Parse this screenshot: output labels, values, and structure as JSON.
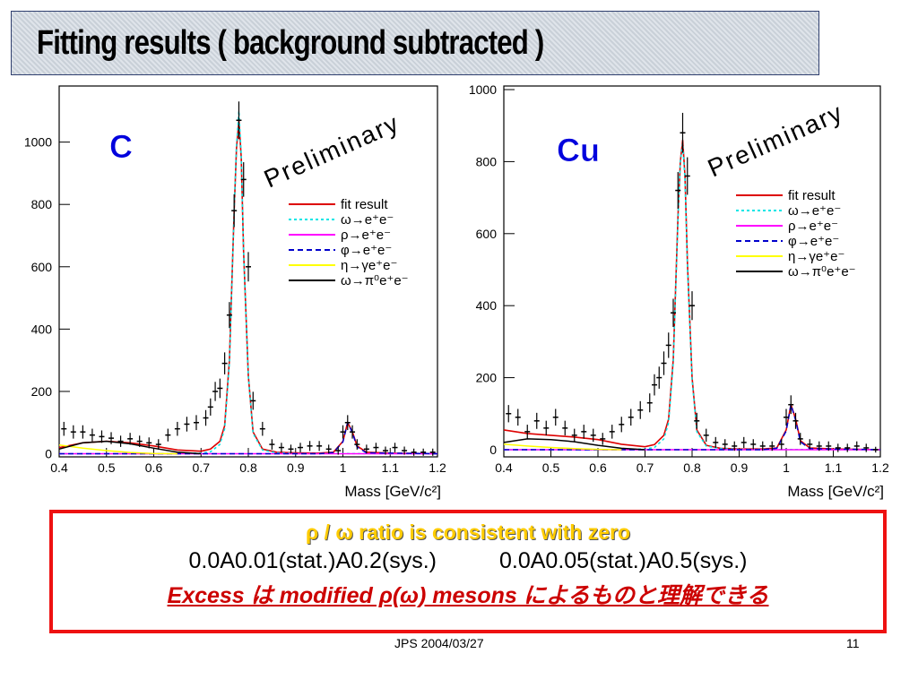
{
  "slide": {
    "title": "Fitting results ( background subtracted )",
    "summary_line1": "ρ / ω ratio is consistent with zero",
    "summary_line2_left": "0.0A0.01(stat.)A0.2(sys.)",
    "summary_line2_right": "0.0A0.05(stat.)A0.5(sys.)",
    "summary_line3": "Excess は modified ρ(ω) mesons によるものと理解できる",
    "footer_date": "JPS 2004/03/27",
    "page_number": "11"
  },
  "colors": {
    "fit": "#dd0000",
    "omega": "#00e5e5",
    "rho": "#ff00ff",
    "phi": "#0000cc",
    "eta": "#ffff00",
    "omega_dalitz": "#000000",
    "label": "#0000dd",
    "frame": "#2f3f6f",
    "summary_border": "#ee1111"
  },
  "chart_data": [
    {
      "type": "line",
      "label": "C",
      "watermark": "Preliminary",
      "xlabel": "Mass [GeV/c²]",
      "ylabel": "",
      "xlim": [
        0.4,
        1.2
      ],
      "ylim": [
        -10,
        1180
      ],
      "xticks": [
        0.4,
        0.5,
        0.6,
        0.7,
        0.8,
        0.9,
        1,
        1.1,
        1.2
      ],
      "xtick_labels": [
        "0.4",
        "0.5",
        "0.6",
        "0.7",
        "0.8",
        "0.9",
        "1",
        "1.1",
        "1.2"
      ],
      "yticks": [
        0,
        200,
        400,
        600,
        800,
        1000
      ],
      "ytick_labels": [
        "0",
        "200",
        "400",
        "600",
        "800",
        "1000"
      ],
      "legend_position": "right",
      "grid": false,
      "series": [
        {
          "name": "fit result",
          "key": "fit",
          "style": "solid",
          "x": [
            0.4,
            0.45,
            0.5,
            0.55,
            0.6,
            0.65,
            0.7,
            0.72,
            0.74,
            0.75,
            0.76,
            0.77,
            0.775,
            0.78,
            0.785,
            0.79,
            0.8,
            0.81,
            0.83,
            0.86,
            0.9,
            0.95,
            0.98,
            1.0,
            1.01,
            1.02,
            1.03,
            1.05,
            1.1,
            1.15,
            1.2
          ],
          "y": [
            20,
            35,
            40,
            35,
            25,
            12,
            8,
            15,
            40,
            90,
            300,
            780,
            980,
            1070,
            950,
            650,
            250,
            70,
            15,
            5,
            3,
            2,
            5,
            40,
            100,
            70,
            25,
            5,
            2,
            1,
            0
          ]
        },
        {
          "name": "ω→e⁺e⁻",
          "key": "omega",
          "style": "dotted",
          "x": [
            0.4,
            0.6,
            0.7,
            0.72,
            0.74,
            0.75,
            0.76,
            0.77,
            0.775,
            0.78,
            0.785,
            0.79,
            0.8,
            0.81,
            0.83,
            0.86,
            0.9,
            1.2
          ],
          "y": [
            0,
            0,
            2,
            6,
            30,
            80,
            290,
            780,
            990,
            1100,
            960,
            650,
            250,
            65,
            12,
            3,
            1,
            0
          ]
        },
        {
          "name": "ρ→e⁺e⁻",
          "key": "rho",
          "style": "solid",
          "x": [
            0.4,
            0.6,
            0.8,
            1.0,
            1.2
          ],
          "y": [
            0,
            0,
            0,
            0,
            0
          ]
        },
        {
          "name": "φ→e⁺e⁻",
          "key": "phi",
          "style": "dashed",
          "x": [
            0.4,
            0.95,
            0.98,
            1.0,
            1.01,
            1.02,
            1.03,
            1.05,
            1.2
          ],
          "y": [
            0,
            0,
            4,
            38,
            100,
            68,
            22,
            3,
            0
          ]
        },
        {
          "name": "η→γe⁺e⁻",
          "key": "eta",
          "style": "solid",
          "x": [
            0.4,
            0.45,
            0.5,
            0.55,
            0.6,
            0.65
          ],
          "y": [
            28,
            18,
            10,
            4,
            1,
            0
          ]
        },
        {
          "name": "ω→π⁰e⁺e⁻",
          "key": "omega_dalitz",
          "style": "solid",
          "x": [
            0.4,
            0.45,
            0.5,
            0.55,
            0.6,
            0.65,
            0.7
          ],
          "y": [
            15,
            35,
            40,
            32,
            18,
            5,
            0
          ]
        }
      ],
      "data_points": {
        "x": [
          0.41,
          0.43,
          0.45,
          0.47,
          0.49,
          0.51,
          0.53,
          0.55,
          0.57,
          0.59,
          0.61,
          0.63,
          0.65,
          0.67,
          0.69,
          0.71,
          0.72,
          0.73,
          0.74,
          0.75,
          0.76,
          0.77,
          0.78,
          0.79,
          0.8,
          0.81,
          0.83,
          0.85,
          0.87,
          0.89,
          0.91,
          0.93,
          0.95,
          0.97,
          0.99,
          1.0,
          1.01,
          1.02,
          1.03,
          1.05,
          1.07,
          1.09,
          1.11,
          1.13,
          1.15,
          1.17,
          1.19
        ],
        "y": [
          80,
          70,
          70,
          60,
          55,
          50,
          40,
          48,
          40,
          35,
          30,
          60,
          80,
          95,
          100,
          115,
          150,
          200,
          210,
          290,
          445,
          780,
          1070,
          880,
          600,
          170,
          80,
          30,
          20,
          15,
          20,
          25,
          25,
          15,
          10,
          70,
          100,
          70,
          30,
          15,
          20,
          10,
          20,
          10,
          5,
          5,
          5
        ]
      }
    },
    {
      "type": "line",
      "label": "Cu",
      "watermark": "Preliminary",
      "xlabel": "Mass [GeV/c²]",
      "ylabel": "",
      "xlim": [
        0.4,
        1.2
      ],
      "ylim": [
        -20,
        1010
      ],
      "xticks": [
        0.4,
        0.5,
        0.6,
        0.7,
        0.8,
        0.9,
        1,
        1.1,
        1.2
      ],
      "xtick_labels": [
        "0.4",
        "0.5",
        "0.6",
        "0.7",
        "0.8",
        "0.9",
        "1",
        "1.1",
        "1.2"
      ],
      "yticks": [
        0,
        200,
        400,
        600,
        800,
        1000
      ],
      "ytick_labels": [
        "0",
        "200",
        "400",
        "600",
        "800",
        "1000"
      ],
      "legend_position": "right",
      "grid": false,
      "series": [
        {
          "name": "fit result",
          "key": "fit",
          "style": "solid",
          "x": [
            0.4,
            0.45,
            0.5,
            0.55,
            0.6,
            0.65,
            0.7,
            0.72,
            0.74,
            0.75,
            0.76,
            0.77,
            0.775,
            0.78,
            0.785,
            0.79,
            0.8,
            0.81,
            0.83,
            0.86,
            0.9,
            0.95,
            0.98,
            1.0,
            1.01,
            1.02,
            1.03,
            1.05,
            1.1,
            1.15,
            1.2
          ],
          "y": [
            55,
            45,
            40,
            35,
            28,
            15,
            8,
            14,
            40,
            85,
            250,
            650,
            800,
            860,
            760,
            520,
            200,
            55,
            12,
            4,
            2,
            2,
            5,
            55,
            125,
            85,
            25,
            5,
            2,
            1,
            0
          ]
        },
        {
          "name": "ω→e⁺e⁻",
          "key": "omega",
          "style": "dotted",
          "x": [
            0.4,
            0.6,
            0.7,
            0.72,
            0.74,
            0.75,
            0.76,
            0.77,
            0.775,
            0.78,
            0.785,
            0.79,
            0.8,
            0.81,
            0.83,
            0.86,
            0.9,
            1.2
          ],
          "y": [
            0,
            0,
            2,
            6,
            30,
            75,
            240,
            640,
            800,
            850,
            750,
            510,
            195,
            50,
            10,
            3,
            1,
            0
          ]
        },
        {
          "name": "ρ→e⁺e⁻",
          "key": "rho",
          "style": "solid",
          "x": [
            0.4,
            0.6,
            0.8,
            1.0,
            1.2
          ],
          "y": [
            0,
            0,
            0,
            0,
            0
          ]
        },
        {
          "name": "φ→e⁺e⁻",
          "key": "phi",
          "style": "dashed",
          "x": [
            0.4,
            0.95,
            0.98,
            1.0,
            1.01,
            1.02,
            1.03,
            1.05,
            1.2
          ],
          "y": [
            0,
            0,
            4,
            52,
            125,
            82,
            22,
            3,
            0
          ]
        },
        {
          "name": "η→γe⁺e⁻",
          "key": "eta",
          "style": "solid",
          "x": [
            0.4,
            0.45,
            0.5,
            0.55,
            0.6,
            0.65
          ],
          "y": [
            15,
            10,
            6,
            3,
            1,
            0
          ]
        },
        {
          "name": "ω→π⁰e⁺e⁻",
          "key": "omega_dalitz",
          "style": "solid",
          "x": [
            0.4,
            0.45,
            0.5,
            0.55,
            0.6,
            0.65,
            0.7
          ],
          "y": [
            20,
            30,
            28,
            22,
            12,
            4,
            0
          ]
        }
      ],
      "data_points": {
        "x": [
          0.41,
          0.43,
          0.45,
          0.47,
          0.49,
          0.51,
          0.53,
          0.55,
          0.57,
          0.59,
          0.61,
          0.63,
          0.65,
          0.67,
          0.69,
          0.71,
          0.72,
          0.73,
          0.74,
          0.75,
          0.76,
          0.77,
          0.78,
          0.79,
          0.8,
          0.81,
          0.83,
          0.85,
          0.87,
          0.89,
          0.91,
          0.93,
          0.95,
          0.97,
          0.99,
          1.0,
          1.01,
          1.02,
          1.03,
          1.05,
          1.07,
          1.09,
          1.11,
          1.13,
          1.15,
          1.17,
          1.19
        ],
        "y": [
          100,
          90,
          50,
          80,
          60,
          90,
          60,
          40,
          50,
          40,
          30,
          50,
          70,
          90,
          110,
          130,
          180,
          200,
          240,
          290,
          380,
          720,
          880,
          760,
          400,
          80,
          40,
          20,
          15,
          10,
          20,
          15,
          10,
          10,
          15,
          90,
          125,
          80,
          30,
          15,
          10,
          10,
          5,
          5,
          10,
          5,
          0
        ]
      }
    }
  ]
}
